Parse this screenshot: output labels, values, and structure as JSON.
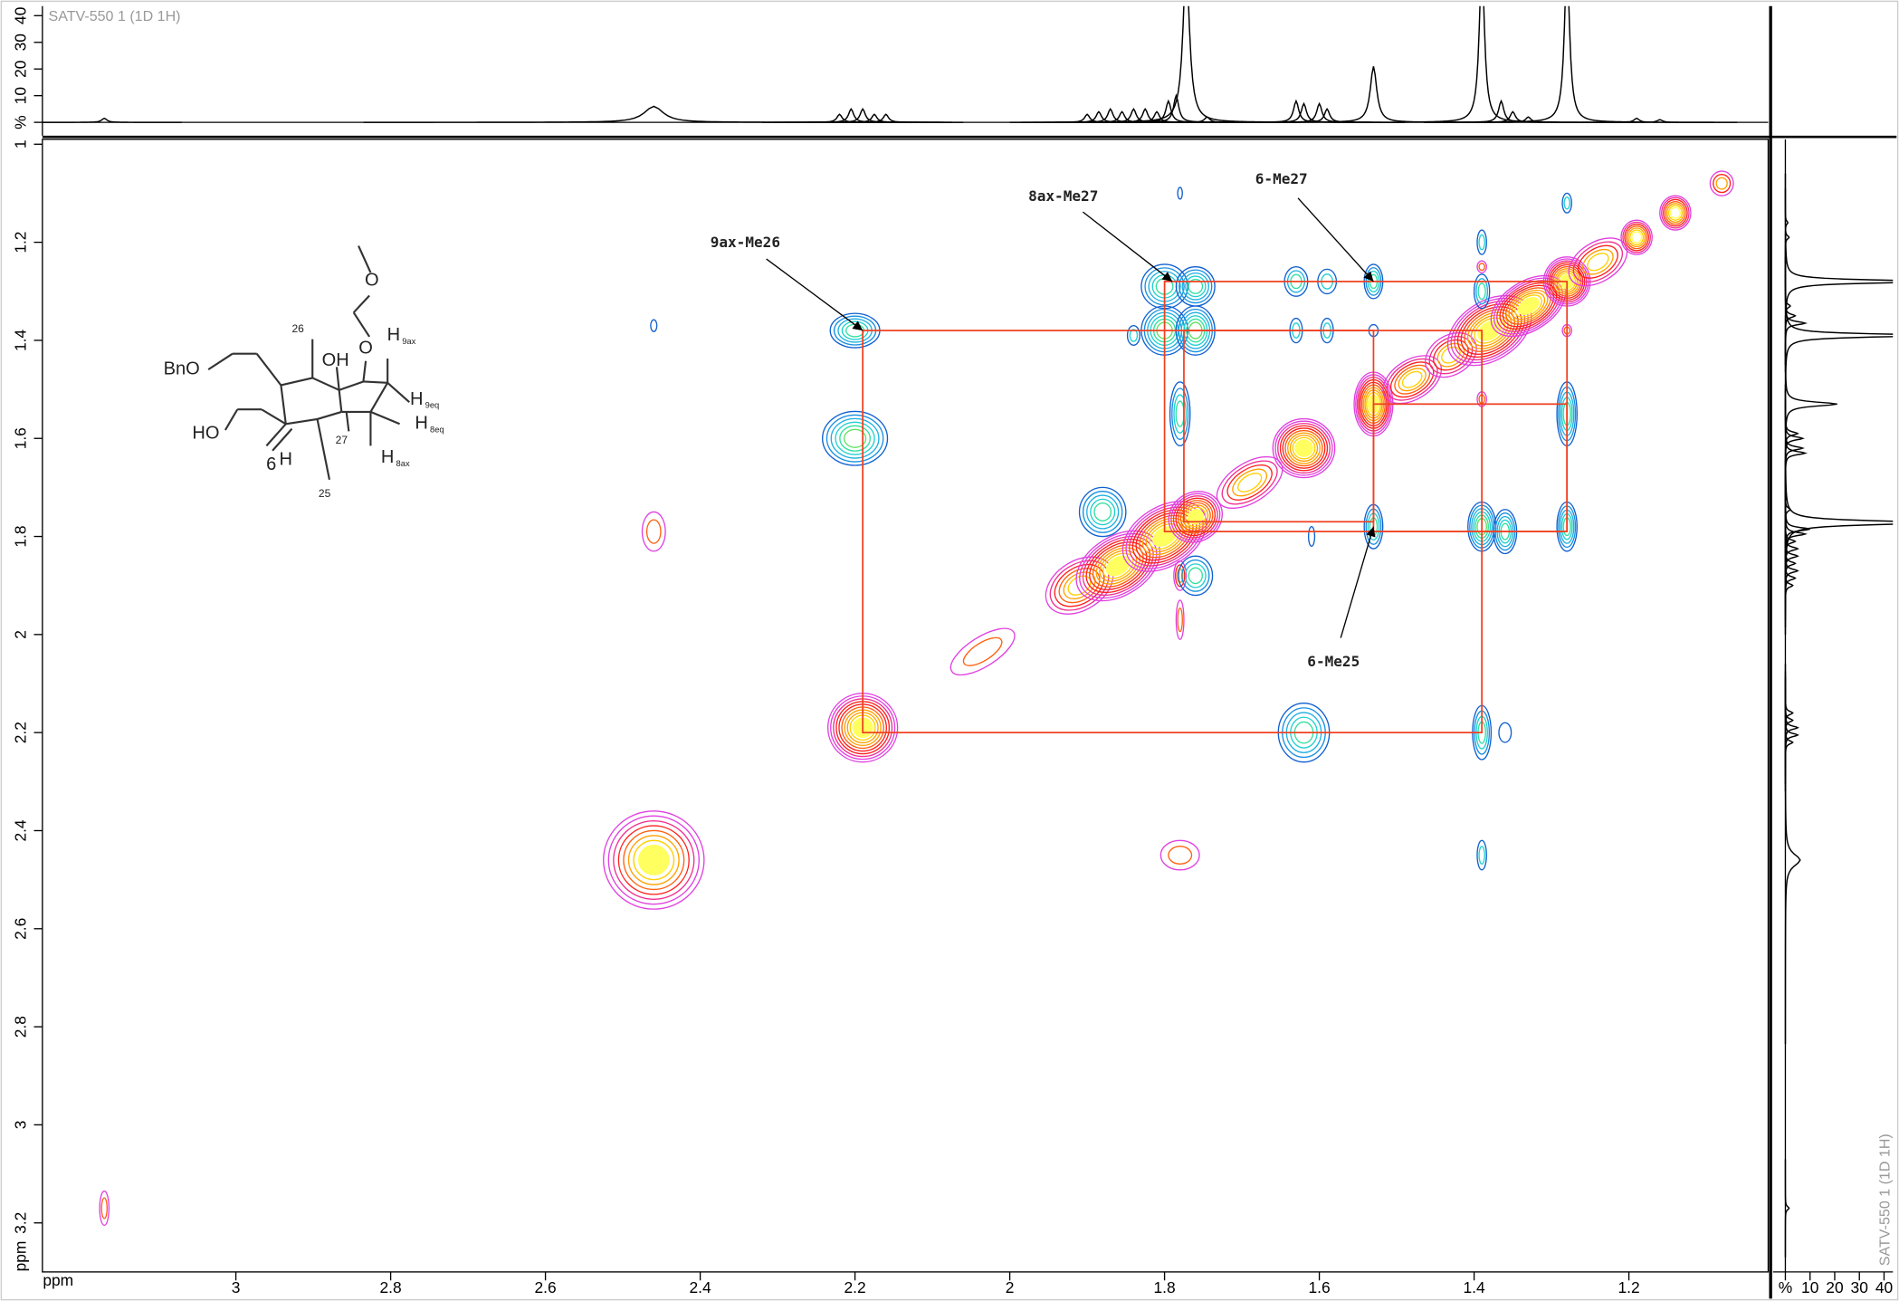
{
  "chart_data": {
    "type": "nmr2d",
    "title": "SATV-550 1 (1D 1H)",
    "xlabel": "ppm",
    "ylabel": "ppm",
    "xlim": [
      3.25,
      1.02
    ],
    "ylim": [
      0.99,
      3.3
    ],
    "xticks": [
      3,
      2.8,
      2.6,
      2.4,
      2.2,
      2,
      1.8,
      1.6,
      1.4,
      1.2
    ],
    "yticks": [
      1,
      1.2,
      1.4,
      1.6,
      1.8,
      2,
      2.2,
      2.4,
      2.6,
      2.8,
      3,
      3.2
    ],
    "projection": {
      "ylim": [
        -5,
        43.6
      ],
      "yticks": [
        {
          "value": 0,
          "label": "%"
        },
        10,
        20,
        30,
        40
      ],
      "color": "#000000",
      "peaks": [
        {
          "ppm": 3.17,
          "height": 1.5,
          "width": 0.004
        },
        {
          "ppm": 2.46,
          "height": 6,
          "width": 0.015
        },
        {
          "ppm": 2.22,
          "height": 3,
          "width": 0.004
        },
        {
          "ppm": 2.205,
          "height": 5,
          "width": 0.004
        },
        {
          "ppm": 2.19,
          "height": 5,
          "width": 0.004
        },
        {
          "ppm": 2.175,
          "height": 3,
          "width": 0.004
        },
        {
          "ppm": 2.16,
          "height": 3,
          "width": 0.004
        },
        {
          "ppm": 1.9,
          "height": 3,
          "width": 0.004
        },
        {
          "ppm": 1.885,
          "height": 4,
          "width": 0.004
        },
        {
          "ppm": 1.87,
          "height": 5,
          "width": 0.004
        },
        {
          "ppm": 1.855,
          "height": 4,
          "width": 0.004
        },
        {
          "ppm": 1.84,
          "height": 5,
          "width": 0.004
        },
        {
          "ppm": 1.825,
          "height": 5,
          "width": 0.004
        },
        {
          "ppm": 1.81,
          "height": 4,
          "width": 0.004
        },
        {
          "ppm": 1.795,
          "height": 8,
          "width": 0.004
        },
        {
          "ppm": 1.785,
          "height": 10,
          "width": 0.004
        },
        {
          "ppm": 1.772,
          "height": 60,
          "width": 0.005
        },
        {
          "ppm": 1.745,
          "height": 2,
          "width": 0.004
        },
        {
          "ppm": 1.63,
          "height": 8,
          "width": 0.004
        },
        {
          "ppm": 1.62,
          "height": 7,
          "width": 0.004
        },
        {
          "ppm": 1.6,
          "height": 7,
          "width": 0.004
        },
        {
          "ppm": 1.59,
          "height": 5,
          "width": 0.004
        },
        {
          "ppm": 1.53,
          "height": 21,
          "width": 0.005
        },
        {
          "ppm": 1.39,
          "height": 60,
          "width": 0.004
        },
        {
          "ppm": 1.365,
          "height": 8,
          "width": 0.004
        },
        {
          "ppm": 1.35,
          "height": 4,
          "width": 0.004
        },
        {
          "ppm": 1.33,
          "height": 2,
          "width": 0.004
        },
        {
          "ppm": 1.28,
          "height": 60,
          "width": 0.004
        },
        {
          "ppm": 1.19,
          "height": 1.5,
          "width": 0.004
        },
        {
          "ppm": 1.16,
          "height": 1,
          "width": 0.004
        }
      ]
    },
    "palettes": {
      "warm": [
        "#e040e0",
        "#f03090",
        "#ff2020",
        "#ff6010",
        "#ffa000",
        "#ffd000",
        "#ffff60"
      ],
      "cool": [
        "#1060d0",
        "#1890e0",
        "#20b0e0",
        "#20d0d0",
        "#30e0a0",
        "#60e060"
      ]
    },
    "peaks": [
      {
        "x": 3.17,
        "y": 3.17,
        "wx": 0.006,
        "wy": 0.035,
        "intensity": 2,
        "kind": "warm",
        "tilted": false
      },
      {
        "x": 2.46,
        "y": 2.46,
        "wx": 0.065,
        "wy": 0.1,
        "intensity": 8,
        "kind": "warm",
        "tilted": false
      },
      {
        "x": 2.46,
        "y": 1.79,
        "wx": 0.015,
        "wy": 0.04,
        "intensity": 2,
        "kind": "warm",
        "tilted": false
      },
      {
        "x": 2.19,
        "y": 2.19,
        "wx": 0.045,
        "wy": 0.07,
        "intensity": 10,
        "kind": "warm",
        "tilted": false
      },
      {
        "x": 2.035,
        "y": 2.035,
        "wx": 0.04,
        "wy": 0.03,
        "intensity": 2,
        "kind": "warm",
        "tilted": true
      },
      {
        "x": 1.91,
        "y": 1.9,
        "wx": 0.04,
        "wy": 0.05,
        "intensity": 6,
        "kind": "warm",
        "tilted": true
      },
      {
        "x": 1.86,
        "y": 1.86,
        "wx": 0.05,
        "wy": 0.06,
        "intensity": 10,
        "kind": "warm",
        "tilted": true
      },
      {
        "x": 1.8,
        "y": 1.8,
        "wx": 0.05,
        "wy": 0.06,
        "intensity": 10,
        "kind": "warm",
        "tilted": true
      },
      {
        "x": 1.76,
        "y": 1.76,
        "wx": 0.03,
        "wy": 0.05,
        "intensity": 9,
        "kind": "warm",
        "tilted": true
      },
      {
        "x": 1.78,
        "y": 1.88,
        "wx": 0.008,
        "wy": 0.03,
        "intensity": 3,
        "kind": "warm",
        "tilted": false
      },
      {
        "x": 1.78,
        "y": 1.97,
        "wx": 0.005,
        "wy": 0.04,
        "intensity": 2,
        "kind": "warm",
        "tilted": false
      },
      {
        "x": 1.78,
        "y": 2.45,
        "wx": 0.025,
        "wy": 0.03,
        "intensity": 2,
        "kind": "warm",
        "tilted": false
      },
      {
        "x": 1.69,
        "y": 1.69,
        "wx": 0.04,
        "wy": 0.04,
        "intensity": 5,
        "kind": "warm",
        "tilted": true
      },
      {
        "x": 1.62,
        "y": 1.62,
        "wx": 0.04,
        "wy": 0.06,
        "intensity": 10,
        "kind": "warm",
        "tilted": false
      },
      {
        "x": 1.53,
        "y": 1.53,
        "wx": 0.025,
        "wy": 0.065,
        "intensity": 10,
        "kind": "warm",
        "tilted": false
      },
      {
        "x": 1.48,
        "y": 1.48,
        "wx": 0.035,
        "wy": 0.04,
        "intensity": 6,
        "kind": "warm",
        "tilted": true
      },
      {
        "x": 1.43,
        "y": 1.43,
        "wx": 0.03,
        "wy": 0.04,
        "intensity": 5,
        "kind": "warm",
        "tilted": true
      },
      {
        "x": 1.38,
        "y": 1.38,
        "wx": 0.05,
        "wy": 0.06,
        "intensity": 10,
        "kind": "warm",
        "tilted": true
      },
      {
        "x": 1.33,
        "y": 1.33,
        "wx": 0.045,
        "wy": 0.05,
        "intensity": 10,
        "kind": "warm",
        "tilted": true
      },
      {
        "x": 1.28,
        "y": 1.28,
        "wx": 0.03,
        "wy": 0.05,
        "intensity": 10,
        "kind": "warm",
        "tilted": false
      },
      {
        "x": 1.24,
        "y": 1.24,
        "wx": 0.035,
        "wy": 0.04,
        "intensity": 5,
        "kind": "warm",
        "tilted": true
      },
      {
        "x": 1.19,
        "y": 1.19,
        "wx": 0.02,
        "wy": 0.035,
        "intensity": 7,
        "kind": "warm",
        "tilted": false
      },
      {
        "x": 1.14,
        "y": 1.14,
        "wx": 0.02,
        "wy": 0.035,
        "intensity": 7,
        "kind": "warm",
        "tilted": false
      },
      {
        "x": 1.08,
        "y": 1.08,
        "wx": 0.015,
        "wy": 0.025,
        "intensity": 3,
        "kind": "warm",
        "tilted": false
      },
      {
        "x": 1.39,
        "y": 1.25,
        "wx": 0.006,
        "wy": 0.012,
        "intensity": 2,
        "kind": "warm",
        "tilted": false
      },
      {
        "x": 1.39,
        "y": 1.52,
        "wx": 0.006,
        "wy": 0.015,
        "intensity": 2,
        "kind": "warm",
        "tilted": false
      },
      {
        "x": 1.28,
        "y": 1.38,
        "wx": 0.006,
        "wy": 0.012,
        "intensity": 2,
        "kind": "warm",
        "tilted": false
      },
      {
        "x": 2.2,
        "y": 1.38,
        "wx": 0.032,
        "wy": 0.035,
        "intensity": 5,
        "kind": "cool",
        "tilted": false
      },
      {
        "x": 2.2,
        "y": 1.6,
        "wx": 0.042,
        "wy": 0.055,
        "intensity": 6,
        "kind": "cool",
        "tilted": false
      },
      {
        "x": 1.8,
        "y": 1.29,
        "wx": 0.03,
        "wy": 0.045,
        "intensity": 5,
        "kind": "cool",
        "tilted": false
      },
      {
        "x": 1.76,
        "y": 1.29,
        "wx": 0.025,
        "wy": 0.04,
        "intensity": 5,
        "kind": "cool",
        "tilted": false
      },
      {
        "x": 1.8,
        "y": 1.38,
        "wx": 0.03,
        "wy": 0.05,
        "intensity": 6,
        "kind": "cool",
        "tilted": false
      },
      {
        "x": 1.76,
        "y": 1.38,
        "wx": 0.025,
        "wy": 0.05,
        "intensity": 6,
        "kind": "cool",
        "tilted": false
      },
      {
        "x": 1.84,
        "y": 1.39,
        "wx": 0.008,
        "wy": 0.02,
        "intensity": 2,
        "kind": "cool",
        "tilted": false
      },
      {
        "x": 1.63,
        "y": 1.28,
        "wx": 0.015,
        "wy": 0.03,
        "intensity": 3,
        "kind": "cool",
        "tilted": false
      },
      {
        "x": 1.59,
        "y": 1.28,
        "wx": 0.012,
        "wy": 0.025,
        "intensity": 2,
        "kind": "cool",
        "tilted": false
      },
      {
        "x": 1.63,
        "y": 1.38,
        "wx": 0.008,
        "wy": 0.025,
        "intensity": 2,
        "kind": "cool",
        "tilted": false
      },
      {
        "x": 1.59,
        "y": 1.38,
        "wx": 0.008,
        "wy": 0.025,
        "intensity": 2,
        "kind": "cool",
        "tilted": false
      },
      {
        "x": 1.53,
        "y": 1.28,
        "wx": 0.012,
        "wy": 0.035,
        "intensity": 4,
        "kind": "cool",
        "tilted": false
      },
      {
        "x": 1.53,
        "y": 1.38,
        "wx": 0.006,
        "wy": 0.012,
        "intensity": 1,
        "kind": "cool",
        "tilted": false
      },
      {
        "x": 1.53,
        "y": 1.78,
        "wx": 0.012,
        "wy": 0.045,
        "intensity": 4,
        "kind": "cool",
        "tilted": false
      },
      {
        "x": 1.39,
        "y": 1.2,
        "wx": 0.006,
        "wy": 0.025,
        "intensity": 2,
        "kind": "cool",
        "tilted": false
      },
      {
        "x": 1.39,
        "y": 1.3,
        "wx": 0.01,
        "wy": 0.035,
        "intensity": 3,
        "kind": "cool",
        "tilted": false
      },
      {
        "x": 1.39,
        "y": 1.78,
        "wx": 0.018,
        "wy": 0.05,
        "intensity": 6,
        "kind": "cool",
        "tilted": false
      },
      {
        "x": 1.36,
        "y": 1.79,
        "wx": 0.015,
        "wy": 0.045,
        "intensity": 5,
        "kind": "cool",
        "tilted": false
      },
      {
        "x": 1.28,
        "y": 1.55,
        "wx": 0.013,
        "wy": 0.065,
        "intensity": 5,
        "kind": "cool",
        "tilted": false
      },
      {
        "x": 1.28,
        "y": 1.78,
        "wx": 0.013,
        "wy": 0.05,
        "intensity": 5,
        "kind": "cool",
        "tilted": false
      },
      {
        "x": 1.28,
        "y": 1.12,
        "wx": 0.006,
        "wy": 0.02,
        "intensity": 2,
        "kind": "cool",
        "tilted": false
      },
      {
        "x": 1.78,
        "y": 1.55,
        "wx": 0.013,
        "wy": 0.065,
        "intensity": 4,
        "kind": "cool",
        "tilted": false
      },
      {
        "x": 1.88,
        "y": 1.75,
        "wx": 0.03,
        "wy": 0.05,
        "intensity": 5,
        "kind": "cool",
        "tilted": false
      },
      {
        "x": 1.76,
        "y": 1.88,
        "wx": 0.022,
        "wy": 0.04,
        "intensity": 4,
        "kind": "cool",
        "tilted": false
      },
      {
        "x": 1.62,
        "y": 2.2,
        "wx": 0.033,
        "wy": 0.06,
        "intensity": 5,
        "kind": "cool",
        "tilted": false
      },
      {
        "x": 1.39,
        "y": 2.2,
        "wx": 0.012,
        "wy": 0.055,
        "intensity": 4,
        "kind": "cool",
        "tilted": false
      },
      {
        "x": 1.36,
        "y": 2.2,
        "wx": 0.008,
        "wy": 0.02,
        "intensity": 1,
        "kind": "cool",
        "tilted": false
      },
      {
        "x": 1.39,
        "y": 2.45,
        "wx": 0.006,
        "wy": 0.03,
        "intensity": 2,
        "kind": "cool",
        "tilted": false
      },
      {
        "x": 1.61,
        "y": 1.8,
        "wx": 0.004,
        "wy": 0.02,
        "intensity": 1,
        "kind": "cool",
        "tilted": false
      },
      {
        "x": 1.78,
        "y": 1.1,
        "wx": 0.003,
        "wy": 0.012,
        "intensity": 1,
        "kind": "cool",
        "tilted": false
      },
      {
        "x": 2.46,
        "y": 1.37,
        "wx": 0.004,
        "wy": 0.012,
        "intensity": 1,
        "kind": "cool",
        "tilted": false
      }
    ],
    "box_color": "#f04020",
    "boxes": [
      {
        "x": [
          2.19,
          1.39
        ],
        "y": [
          1.38,
          2.2
        ]
      },
      {
        "x": [
          1.8,
          1.28
        ],
        "y": [
          1.28,
          1.79
        ]
      },
      {
        "x": [
          1.775,
          1.53
        ],
        "y": [
          1.38,
          1.77
        ]
      },
      {
        "x": [
          1.53,
          1.28
        ],
        "y": [
          1.53,
          1.79
        ]
      }
    ],
    "annotations": [
      {
        "text": "9ax-Me26",
        "target": [
          2.19,
          1.38
        ]
      },
      {
        "text": "8ax-Me27",
        "target": [
          1.79,
          1.28
        ]
      },
      {
        "text": "6-Me27",
        "target": [
          1.53,
          1.28
        ]
      },
      {
        "text": "6-Me25",
        "target": [
          1.53,
          1.78
        ]
      }
    ],
    "structure": {
      "labels": [
        {
          "text": "BnO"
        },
        {
          "text": "HO"
        },
        {
          "text": "OH"
        },
        {
          "text": "O"
        },
        {
          "text": "O"
        },
        {
          "text": "H",
          "sub": "9ax"
        },
        {
          "text": "H",
          "sub": "9eq"
        },
        {
          "text": "H",
          "sub": "8eq"
        },
        {
          "text": "H",
          "sub": "8ax"
        },
        {
          "text": "H",
          "sub": "6"
        },
        {
          "text": "26"
        },
        {
          "text": "27"
        },
        {
          "text": "25"
        }
      ]
    }
  }
}
